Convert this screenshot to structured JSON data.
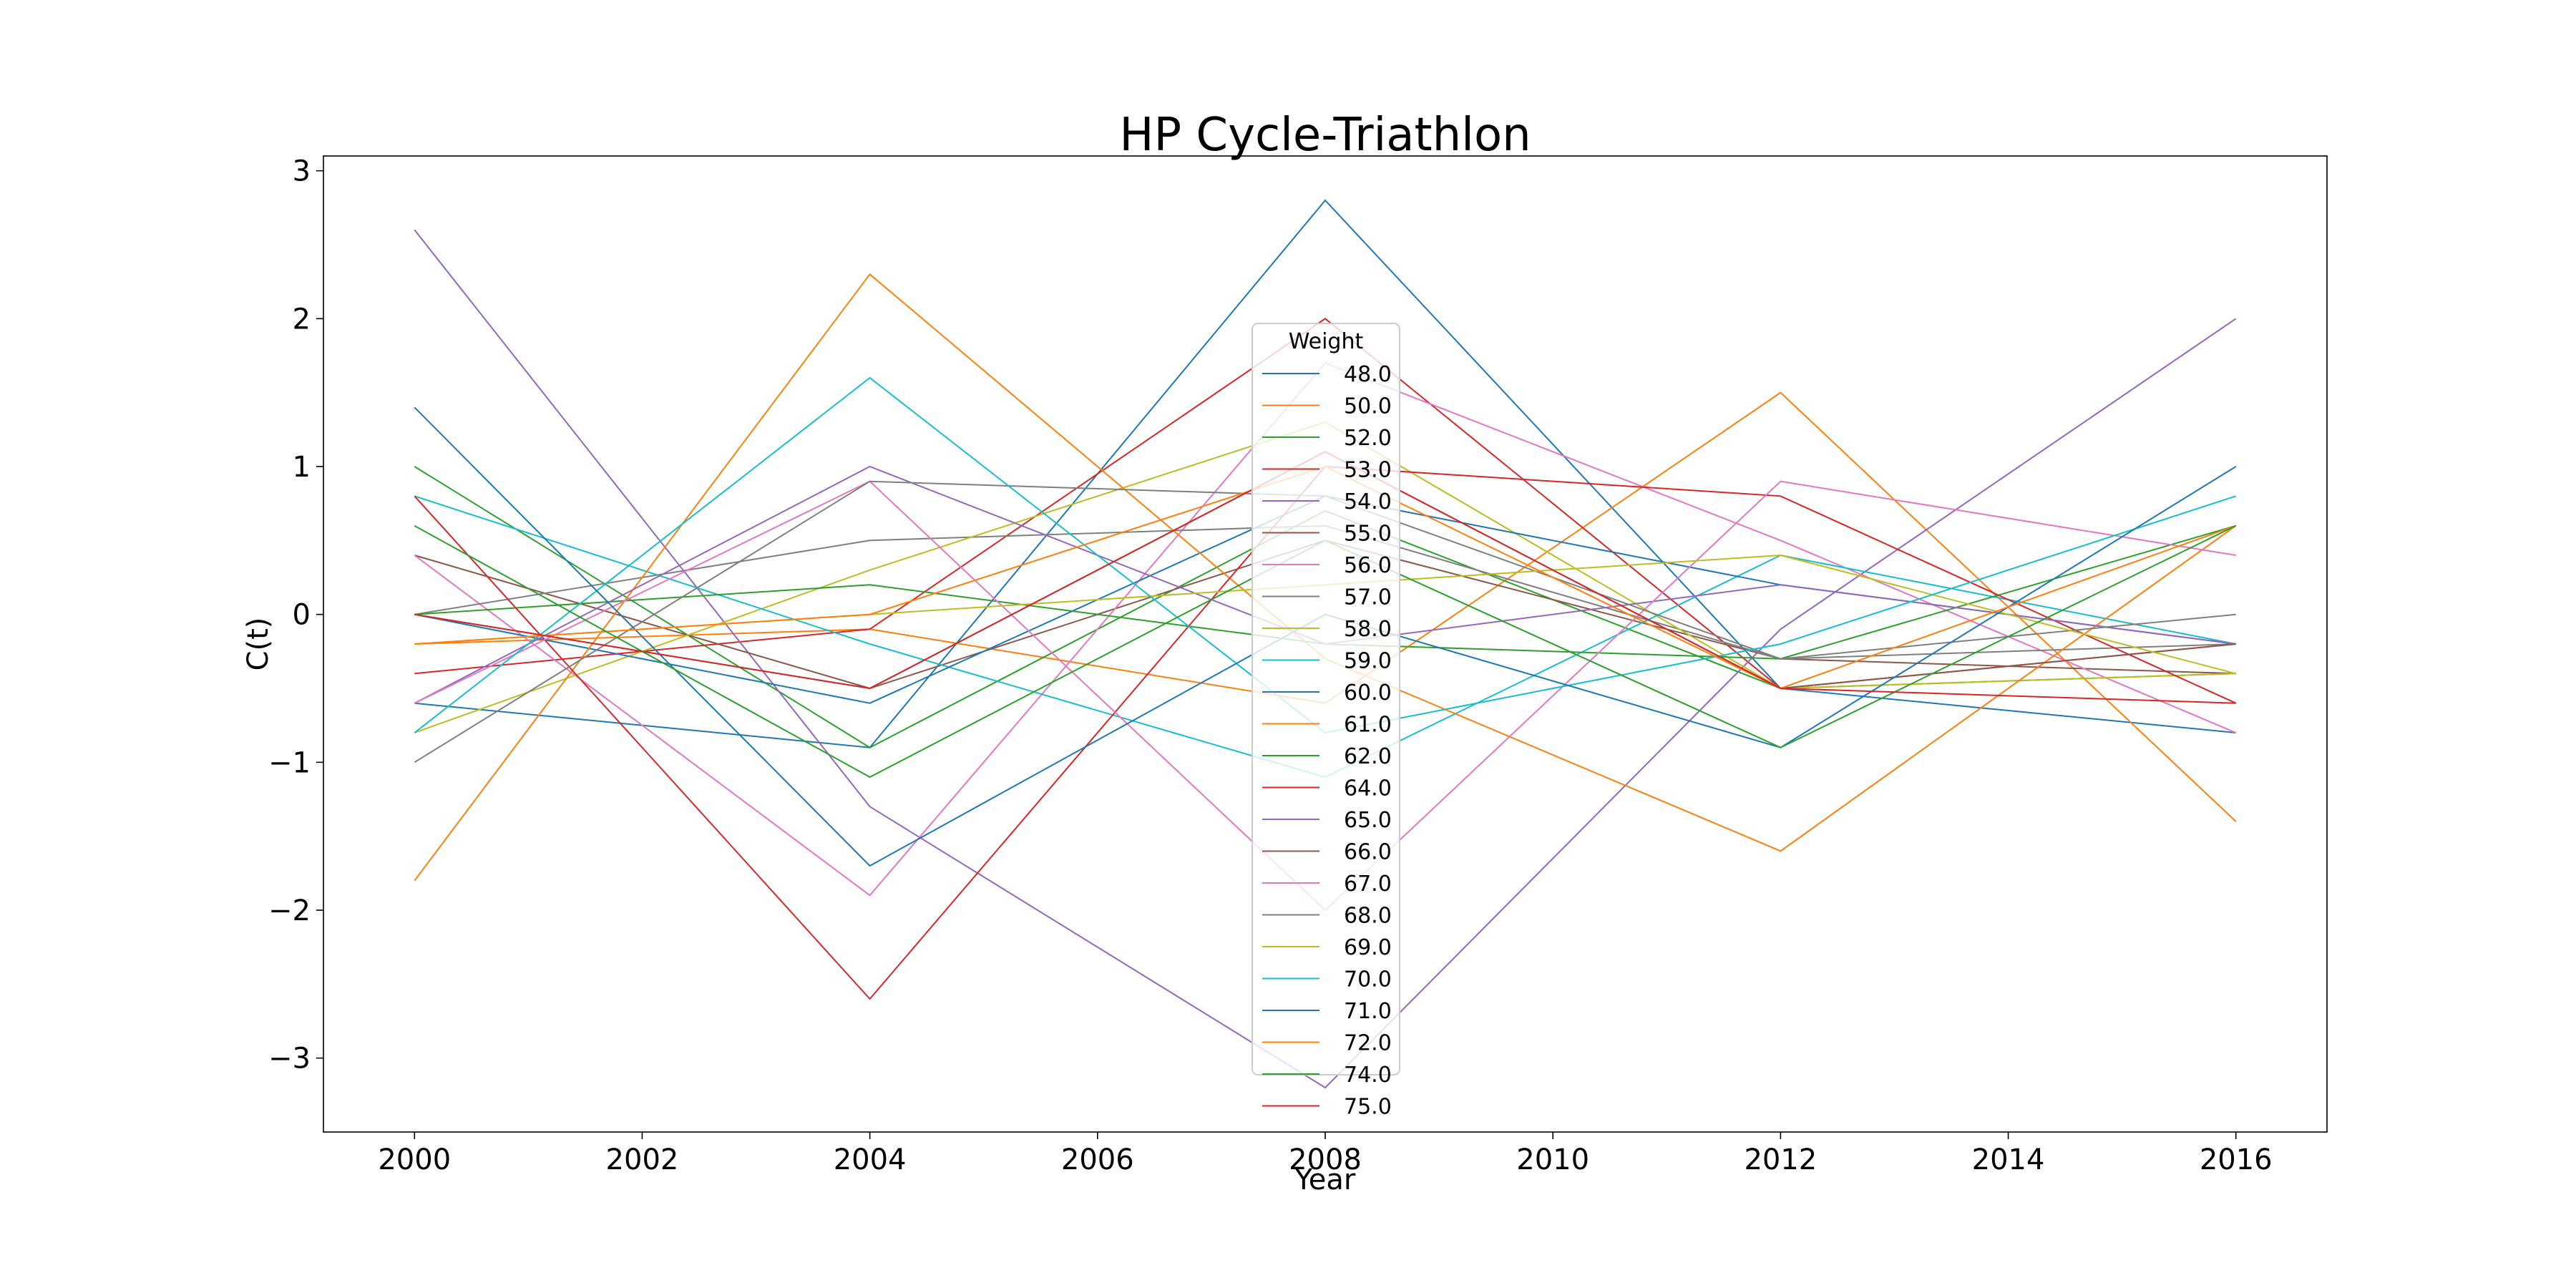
{
  "chart_data": {
    "type": "line",
    "title": "HP Cycle-Triathlon",
    "xlabel": "Year",
    "ylabel": "C(t)",
    "x": [
      2000,
      2004,
      2008,
      2012,
      2016
    ],
    "xticks": [
      "2000",
      "2002",
      "2004",
      "2006",
      "2008",
      "2010",
      "2012",
      "2014",
      "2016"
    ],
    "yticks": [
      "−3",
      "−2",
      "−1",
      "0",
      "1",
      "2",
      "3"
    ],
    "xlim": [
      1999.2,
      2016.8
    ],
    "ylim": [
      -3.5,
      3.1
    ],
    "grid": false,
    "legend": {
      "title": "Weight",
      "placement": "center"
    },
    "series": [
      {
        "name": "48.0",
        "color": "#1f77b4",
        "values": [
          -0.6,
          -0.9,
          2.8,
          -0.5,
          -0.8
        ]
      },
      {
        "name": "50.0",
        "color": "#ff7f0e",
        "values": [
          -0.2,
          -0.1,
          -0.6,
          1.5,
          -1.4
        ]
      },
      {
        "name": "52.0",
        "color": "#2ca02c",
        "values": [
          1.0,
          -0.9,
          0.7,
          -0.5,
          -0.4
        ]
      },
      {
        "name": "53.0",
        "color": "#d62728",
        "values": [
          -0.4,
          -0.1,
          2.0,
          -0.5,
          -0.2
        ]
      },
      {
        "name": "54.0",
        "color": "#9467bd",
        "values": [
          2.6,
          -1.3,
          -3.2,
          -0.1,
          2.0
        ]
      },
      {
        "name": "55.0",
        "color": "#8c564b",
        "values": [
          0.4,
          -0.5,
          0.5,
          -0.3,
          -0.4
        ]
      },
      {
        "name": "56.0",
        "color": "#e377c2",
        "values": [
          0.4,
          -1.9,
          1.7,
          0.5,
          -0.8
        ]
      },
      {
        "name": "57.0",
        "color": "#7f7f7f",
        "values": [
          0.0,
          0.5,
          0.6,
          -0.3,
          -0.2
        ]
      },
      {
        "name": "58.0",
        "color": "#bcbd22",
        "values": [
          -0.8,
          0.3,
          1.3,
          -0.5,
          -0.4
        ]
      },
      {
        "name": "59.0",
        "color": "#17becf",
        "values": [
          0.8,
          -0.2,
          -1.1,
          0.4,
          -0.2
        ]
      },
      {
        "name": "60.0",
        "color": "#1f77b4",
        "values": [
          0.0,
          -0.6,
          0.8,
          0.2,
          -0.2
        ]
      },
      {
        "name": "61.0",
        "color": "#ff7f0e",
        "values": [
          -1.8,
          2.3,
          -0.3,
          -1.6,
          0.6
        ]
      },
      {
        "name": "62.0",
        "color": "#2ca02c",
        "values": [
          0.0,
          0.2,
          -0.2,
          -0.3,
          0.6
        ]
      },
      {
        "name": "64.0",
        "color": "#d62728",
        "values": [
          0.8,
          -2.6,
          1.0,
          0.8,
          -0.6
        ]
      },
      {
        "name": "65.0",
        "color": "#9467bd",
        "values": [
          -0.6,
          1.0,
          -0.2,
          0.2,
          -0.2
        ]
      },
      {
        "name": "66.0",
        "color": "#8c564b",
        "values": [
          0.0,
          -0.5,
          1.1,
          -0.5,
          -0.2
        ]
      },
      {
        "name": "67.0",
        "color": "#e377c2",
        "values": [
          -0.6,
          0.9,
          -2.0,
          0.9,
          0.4
        ]
      },
      {
        "name": "68.0",
        "color": "#7f7f7f",
        "values": [
          -1.0,
          0.9,
          0.8,
          -0.3,
          0.0
        ]
      },
      {
        "name": "69.0",
        "color": "#bcbd22",
        "values": [
          -0.2,
          0.0,
          0.2,
          0.4,
          -0.4
        ]
      },
      {
        "name": "70.0",
        "color": "#17becf",
        "values": [
          -0.8,
          1.6,
          -0.8,
          -0.2,
          0.8
        ]
      },
      {
        "name": "71.0",
        "color": "#1f77b4",
        "values": [
          1.4,
          -1.7,
          0.0,
          -0.9,
          1.0
        ]
      },
      {
        "name": "72.0",
        "color": "#ff7f0e",
        "values": [
          -0.2,
          0.0,
          1.0,
          -0.5,
          0.6
        ]
      },
      {
        "name": "74.0",
        "color": "#2ca02c",
        "values": [
          0.6,
          -1.1,
          0.5,
          -0.9,
          0.6
        ]
      },
      {
        "name": "75.0",
        "color": "#d62728",
        "values": [
          0.0,
          -0.5,
          1.1,
          -0.5,
          -0.6
        ]
      }
    ]
  }
}
